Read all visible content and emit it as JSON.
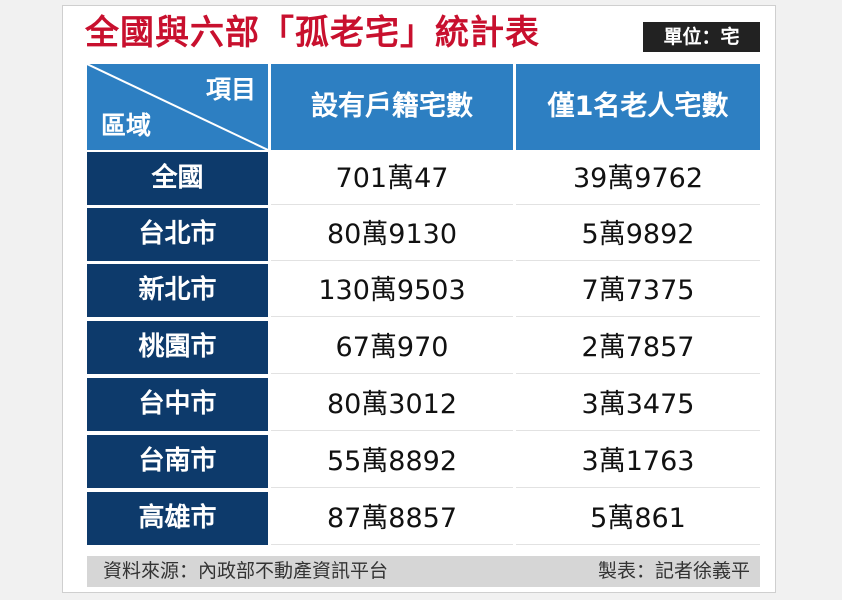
{
  "title": "全國與六部「孤老宅」統計表",
  "unit": "單位：宅",
  "header": {
    "corner_top": "項目",
    "corner_bottom": "區域",
    "columns": [
      "設有戶籍宅數",
      "僅1名老人宅數"
    ]
  },
  "rows": [
    {
      "region": "全國",
      "households": "701萬47",
      "elderly_alone": "39萬9762"
    },
    {
      "region": "台北市",
      "households": "80萬9130",
      "elderly_alone": "5萬9892"
    },
    {
      "region": "新北市",
      "households": "130萬9503",
      "elderly_alone": "7萬7375"
    },
    {
      "region": "桃園市",
      "households": "67萬970",
      "elderly_alone": "2萬7857"
    },
    {
      "region": "台中市",
      "households": "80萬3012",
      "elderly_alone": "3萬3475"
    },
    {
      "region": "台南市",
      "households": "55萬8892",
      "elderly_alone": "3萬1763"
    },
    {
      "region": "高雄市",
      "households": "87萬8857",
      "elderly_alone": "5萬861"
    }
  ],
  "footer": {
    "source": "資料來源：內政部不動產資訊平台",
    "maker": "製表：記者徐義平"
  },
  "colors": {
    "title": "#c8102e",
    "header_blue": "#2d7fc2",
    "region_navy": "#0d3a6b"
  }
}
